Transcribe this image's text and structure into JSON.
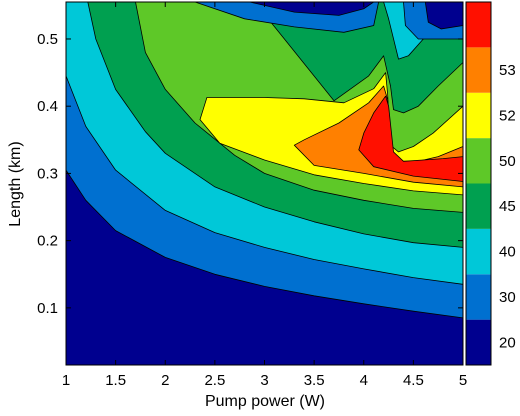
{
  "chart_data": {
    "type": "contour",
    "xlabel": "Pump power (W)",
    "ylabel": "Length (km)",
    "xlim": [
      1,
      5
    ],
    "ylim": [
      0.015,
      0.555
    ],
    "x_ticks": [
      {
        "value": 1,
        "label": "1"
      },
      {
        "value": 1.5,
        "label": "1.5"
      },
      {
        "value": 2,
        "label": "2"
      },
      {
        "value": 2.5,
        "label": "2.5"
      },
      {
        "value": 3,
        "label": "3"
      },
      {
        "value": 3.5,
        "label": "3.5"
      },
      {
        "value": 4,
        "label": "4"
      },
      {
        "value": 4.5,
        "label": "4.5"
      },
      {
        "value": 5,
        "label": "5"
      }
    ],
    "y_ticks": [
      {
        "value": 0.1,
        "label": "0.1"
      },
      {
        "value": 0.2,
        "label": "0.2"
      },
      {
        "value": 0.3,
        "label": "0.3"
      },
      {
        "value": 0.4,
        "label": "0.4"
      },
      {
        "value": 0.5,
        "label": "0.5"
      }
    ],
    "colorbar": {
      "labels": [
        "20",
        "30",
        "40",
        "45",
        "50",
        "52",
        "53"
      ],
      "colors": [
        "#00008f",
        "#0070d0",
        "#00c8d8",
        "#00a050",
        "#5ec828",
        "#ffff00",
        "#ff8000",
        "#ff1000"
      ]
    },
    "contours": [
      {
        "level": 1,
        "color": "#0070d0",
        "points": [
          [
            1,
            0.305
          ],
          [
            1.2,
            0.26
          ],
          [
            1.5,
            0.215
          ],
          [
            2,
            0.175
          ],
          [
            2.5,
            0.15
          ],
          [
            3,
            0.132
          ],
          [
            3.5,
            0.118
          ],
          [
            4,
            0.106
          ],
          [
            4.5,
            0.095
          ],
          [
            5,
            0.085
          ],
          [
            5,
            0.555
          ],
          [
            1,
            0.555
          ]
        ]
      },
      {
        "level": 2,
        "color": "#00c8d8",
        "points": [
          [
            1,
            0.445
          ],
          [
            1.2,
            0.37
          ],
          [
            1.5,
            0.305
          ],
          [
            2,
            0.245
          ],
          [
            2.5,
            0.212
          ],
          [
            3,
            0.19
          ],
          [
            3.5,
            0.172
          ],
          [
            4,
            0.158
          ],
          [
            4.5,
            0.145
          ],
          [
            5,
            0.135
          ],
          [
            5,
            0.555
          ],
          [
            1,
            0.555
          ]
        ]
      },
      {
        "level": 3,
        "color": "#00a050",
        "points": [
          [
            1.22,
            0.555
          ],
          [
            1.3,
            0.5
          ],
          [
            1.5,
            0.425
          ],
          [
            1.8,
            0.362
          ],
          [
            2,
            0.33
          ],
          [
            2.5,
            0.28
          ],
          [
            3,
            0.25
          ],
          [
            3.5,
            0.228
          ],
          [
            4,
            0.21
          ],
          [
            4.5,
            0.197
          ],
          [
            5,
            0.19
          ],
          [
            5,
            0.552
          ],
          [
            4.8,
            0.53
          ],
          [
            4.6,
            0.5
          ],
          [
            4.45,
            0.475
          ],
          [
            4.35,
            0.47
          ],
          [
            4.25,
            0.53
          ],
          [
            4.2,
            0.555
          ]
        ]
      },
      {
        "level": 4,
        "color": "#5ec828",
        "points": [
          [
            1.7,
            0.555
          ],
          [
            1.8,
            0.48
          ],
          [
            2,
            0.425
          ],
          [
            2.3,
            0.375
          ],
          [
            2.7,
            0.327
          ],
          [
            3,
            0.3
          ],
          [
            3.5,
            0.275
          ],
          [
            4,
            0.26
          ],
          [
            4.5,
            0.248
          ],
          [
            5,
            0.242
          ],
          [
            5,
            0.465
          ],
          [
            4.75,
            0.43
          ],
          [
            4.55,
            0.4
          ],
          [
            4.4,
            0.39
          ],
          [
            4.3,
            0.395
          ],
          [
            4.27,
            0.43
          ],
          [
            4.2,
            0.475
          ],
          [
            4.05,
            0.445
          ],
          [
            3.7,
            0.408
          ],
          [
            3.2,
            0.5
          ],
          [
            2.9,
            0.555
          ]
        ]
      },
      {
        "level": 5,
        "color": "#ffff00",
        "points": [
          [
            2.42,
            0.413
          ],
          [
            2.35,
            0.38
          ],
          [
            2.55,
            0.345
          ],
          [
            3,
            0.32
          ],
          [
            3.5,
            0.298
          ],
          [
            4,
            0.285
          ],
          [
            4.5,
            0.274
          ],
          [
            5,
            0.268
          ],
          [
            5,
            0.4
          ],
          [
            4.7,
            0.36
          ],
          [
            4.5,
            0.34
          ],
          [
            4.35,
            0.332
          ],
          [
            4.27,
            0.342
          ],
          [
            4.24,
            0.418
          ],
          [
            4.22,
            0.45
          ],
          [
            4.1,
            0.426
          ],
          [
            3.8,
            0.405
          ],
          [
            3.4,
            0.411
          ],
          [
            3,
            0.413
          ]
        ]
      },
      {
        "level": 6,
        "color": "#ff8000",
        "points": [
          [
            3.3,
            0.342
          ],
          [
            3.5,
            0.312
          ],
          [
            4,
            0.3
          ],
          [
            4.5,
            0.287
          ],
          [
            5,
            0.28
          ],
          [
            5,
            0.34
          ],
          [
            4.75,
            0.325
          ],
          [
            4.55,
            0.318
          ],
          [
            4.35,
            0.318
          ],
          [
            4.27,
            0.338
          ],
          [
            4.24,
            0.41
          ],
          [
            4.2,
            0.43
          ],
          [
            4.05,
            0.405
          ],
          [
            3.75,
            0.375
          ],
          [
            3.4,
            0.35
          ]
        ]
      },
      {
        "level": 7,
        "color": "#ff1000",
        "points": [
          [
            3.95,
            0.335
          ],
          [
            4.1,
            0.31
          ],
          [
            4.5,
            0.296
          ],
          [
            5,
            0.288
          ],
          [
            5,
            0.325
          ],
          [
            4.8,
            0.322
          ],
          [
            4.6,
            0.32
          ],
          [
            4.4,
            0.318
          ],
          [
            4.3,
            0.332
          ],
          [
            4.25,
            0.4
          ],
          [
            4.22,
            0.415
          ],
          [
            4.1,
            0.39
          ],
          [
            4,
            0.36
          ]
        ]
      }
    ],
    "dark_patch": {
      "color": "#00008f",
      "points": [
        [
          4.62,
          0.555
        ],
        [
          4.65,
          0.525
        ],
        [
          4.78,
          0.515
        ],
        [
          5,
          0.52
        ],
        [
          5,
          0.555
        ]
      ]
    },
    "band_patch": {
      "color": "#0070d0",
      "points": [
        [
          4.4,
          0.555
        ],
        [
          4.42,
          0.52
        ],
        [
          4.55,
          0.5
        ],
        [
          5,
          0.5
        ],
        [
          5,
          0.555
        ]
      ]
    },
    "top_dark_patch": {
      "color": "#00008f",
      "points": [
        [
          2.85,
          0.555
        ],
        [
          3.3,
          0.54
        ],
        [
          3.75,
          0.535
        ],
        [
          4,
          0.545
        ],
        [
          4.1,
          0.555
        ]
      ]
    },
    "top_band_patch": {
      "color": "#0070d0",
      "points": [
        [
          2.3,
          0.555
        ],
        [
          2.8,
          0.53
        ],
        [
          3.3,
          0.518
        ],
        [
          3.8,
          0.51
        ],
        [
          4.1,
          0.52
        ],
        [
          4.15,
          0.555
        ]
      ]
    }
  }
}
